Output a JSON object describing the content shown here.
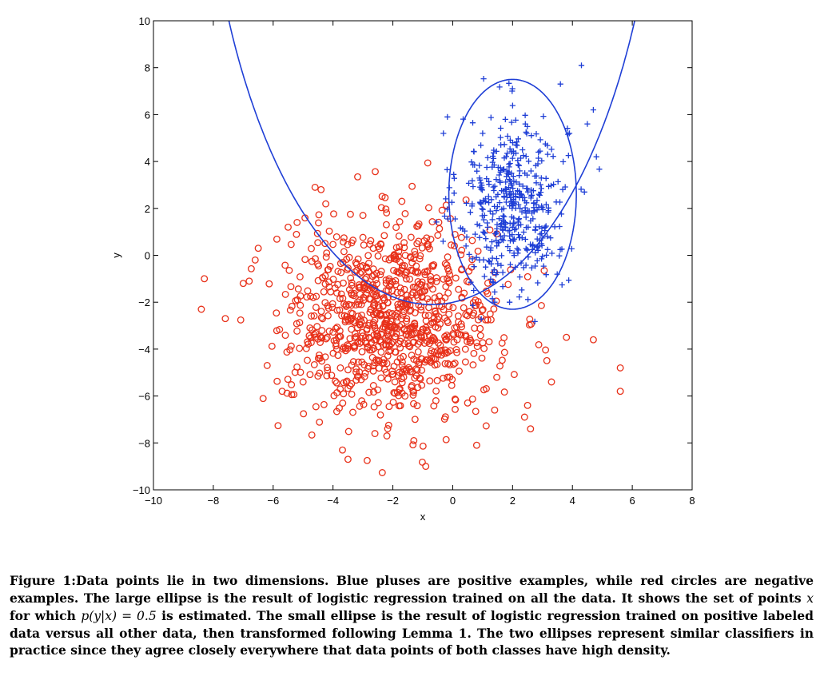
{
  "chart_data": {
    "type": "scatter",
    "title": "",
    "xlabel": "x",
    "ylabel": "y",
    "xlim": [
      -10,
      8
    ],
    "ylim": [
      -10,
      10
    ],
    "xticks": [
      -10,
      -8,
      -6,
      -4,
      -2,
      0,
      2,
      4,
      6,
      8
    ],
    "yticks": [
      -10,
      -8,
      -6,
      -4,
      -2,
      0,
      2,
      4,
      6,
      8,
      10
    ],
    "grid": false,
    "colors": {
      "positive": "#1f3fd6",
      "negative": "#e8311a",
      "ellipse": "#1f3fd6",
      "axis": "#000000"
    },
    "series": [
      {
        "name": "Positive examples (blue pluses)",
        "marker": "plus",
        "distribution": {
          "mean": [
            2.0,
            2.2
          ],
          "std": [
            0.9,
            1.9
          ],
          "count": 450
        },
        "extra_points": [
          [
            4.3,
            8.1
          ],
          [
            3.6,
            7.3
          ],
          [
            4.7,
            6.2
          ],
          [
            4.5,
            5.6
          ],
          [
            3.9,
            5.2
          ],
          [
            4.8,
            4.2
          ],
          [
            4.4,
            2.7
          ],
          [
            1.0,
            5.2
          ],
          [
            1.1,
            -0.5
          ],
          [
            1.4,
            -2.0
          ],
          [
            1.9,
            -2.0
          ],
          [
            0.7,
            -1.5
          ]
        ]
      },
      {
        "name": "Negative examples (red circles)",
        "marker": "circle",
        "distribution": {
          "mean": [
            -2.0,
            -2.7
          ],
          "std": [
            1.75,
            2.0
          ],
          "count": 950
        },
        "extra_points": [
          [
            -8.3,
            -1.0
          ],
          [
            -8.4,
            -2.3
          ],
          [
            -7.6,
            -2.7
          ],
          [
            -6.6,
            -0.2
          ],
          [
            -6.5,
            0.3
          ],
          [
            -7.0,
            -1.2
          ],
          [
            -6.8,
            -1.1
          ],
          [
            -6.2,
            -4.7
          ],
          [
            -5.7,
            -5.8
          ],
          [
            -5.0,
            -5.4
          ],
          [
            -4.6,
            2.9
          ],
          [
            -4.4,
            2.8
          ],
          [
            -5.5,
            1.2
          ],
          [
            -5.2,
            1.4
          ],
          [
            -3.5,
            -8.7
          ],
          [
            -0.9,
            -9.0
          ],
          [
            4.7,
            -3.6
          ],
          [
            3.8,
            -3.5
          ],
          [
            3.3,
            -5.4
          ],
          [
            5.6,
            -4.8
          ],
          [
            5.6,
            -5.8
          ],
          [
            2.6,
            -7.4
          ],
          [
            2.5,
            -6.4
          ],
          [
            2.4,
            -6.9
          ],
          [
            1.4,
            -6.6
          ],
          [
            0.8,
            -8.1
          ],
          [
            -1.3,
            -7.9
          ],
          [
            -2.2,
            -7.7
          ],
          [
            -2.6,
            -7.6
          ],
          [
            -1.7,
            2.3
          ],
          [
            -3.0,
            1.7
          ]
        ]
      }
    ],
    "curves": [
      {
        "name": "Large ellipse (logistic regression on all data)",
        "type": "ellipse",
        "center": [
          -0.7,
          20.9
        ],
        "semi_axes": [
          7.7,
          23.0
        ],
        "rotation_deg": 0,
        "note": "only the lower section, y between about -1.55 and 10, lies inside the axes"
      },
      {
        "name": "Small ellipse (positive vs rest, transformed by Lemma 1)",
        "type": "ellipse",
        "center": [
          2.0,
          2.6
        ],
        "semi_axes": [
          2.13,
          4.9
        ],
        "rotation_deg": 0
      }
    ]
  },
  "caption": {
    "label": "Figure 1:",
    "text_1": "Data points lie in two dimensions. Blue pluses are positive examples, while red circles are negative examples. The large ellipse is the result of logistic regression trained on all the data. It shows the set of points",
    "math_x": "x",
    "text_2": "for which",
    "math_p": "p(y|x) = 0.5",
    "text_3": "is estimated. The small ellipse is the result of logistic regression trained on positive labeled data versus all other data, then transformed following Lemma 1. The two ellipses represent similar classifiers in practice since they agree closely everywhere that data points of both classes have high density."
  }
}
